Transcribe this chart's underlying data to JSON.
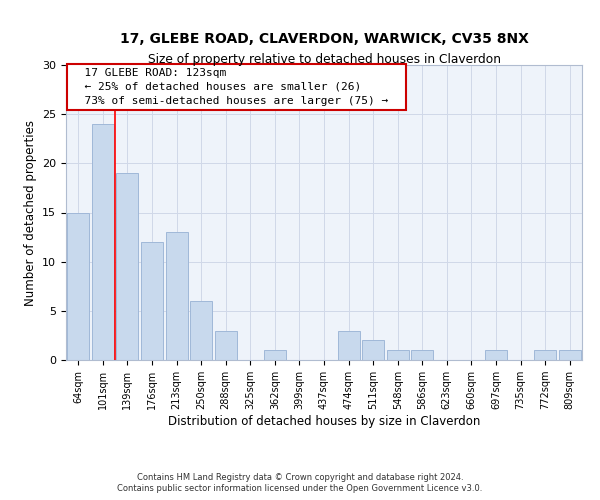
{
  "title_line1": "17, GLEBE ROAD, CLAVERDON, WARWICK, CV35 8NX",
  "title_line2": "Size of property relative to detached houses in Claverdon",
  "xlabel": "Distribution of detached houses by size in Claverdon",
  "ylabel": "Number of detached properties",
  "bar_labels": [
    "64sqm",
    "101sqm",
    "139sqm",
    "176sqm",
    "213sqm",
    "250sqm",
    "288sqm",
    "325sqm",
    "362sqm",
    "399sqm",
    "437sqm",
    "474sqm",
    "511sqm",
    "548sqm",
    "586sqm",
    "623sqm",
    "660sqm",
    "697sqm",
    "735sqm",
    "772sqm",
    "809sqm"
  ],
  "bar_values": [
    15,
    24,
    19,
    12,
    13,
    6,
    3,
    0,
    1,
    0,
    0,
    3,
    2,
    1,
    1,
    0,
    0,
    1,
    0,
    1,
    1
  ],
  "bar_color": "#c8d9ed",
  "bar_edge_color": "#a0b8d8",
  "ylim": [
    0,
    30
  ],
  "yticks": [
    0,
    5,
    10,
    15,
    20,
    25,
    30
  ],
  "annotation_line1": "17 GLEBE ROAD: 123sqm",
  "annotation_line2": "← 25% of detached houses are smaller (26)",
  "annotation_line3": "73% of semi-detached houses are larger (75) →",
  "red_line_x": 1.5,
  "footer_line1": "Contains HM Land Registry data © Crown copyright and database right 2024.",
  "footer_line2": "Contains public sector information licensed under the Open Government Licence v3.0."
}
